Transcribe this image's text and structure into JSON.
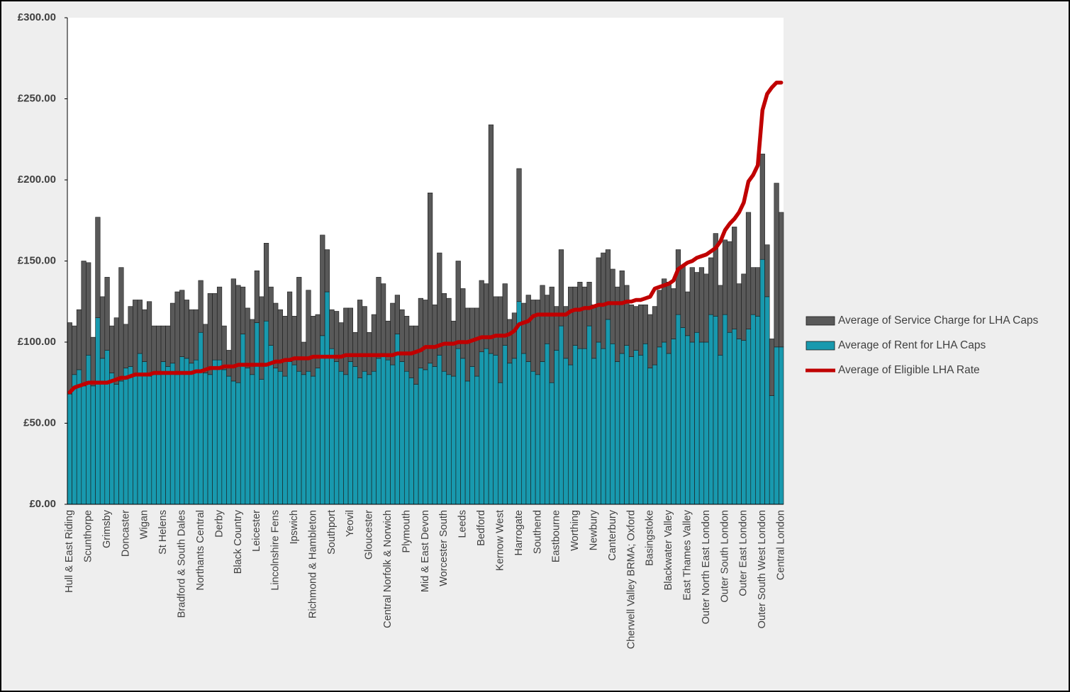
{
  "chart_data": {
    "type": "bar",
    "stacked": true,
    "categories": [
      "Hull & East Riding",
      null,
      null,
      null,
      "Scunthorpe",
      null,
      null,
      null,
      "Grimsby",
      null,
      null,
      null,
      "Doncaster",
      null,
      null,
      null,
      "Wigan",
      null,
      null,
      null,
      "St Helens",
      null,
      null,
      null,
      "Bradford & South Dales",
      null,
      null,
      null,
      "Northants Central",
      null,
      null,
      null,
      "Derby",
      null,
      null,
      null,
      "Black Country",
      null,
      null,
      null,
      "Leicester",
      null,
      null,
      null,
      "Lincolnshire Fens",
      null,
      null,
      null,
      "Ipswich",
      null,
      null,
      null,
      "Richmond & Hambleton",
      null,
      null,
      null,
      "Southport",
      null,
      null,
      null,
      "Yeovil",
      null,
      null,
      null,
      "Gloucester",
      null,
      null,
      null,
      "Central Norfolk & Norwich",
      null,
      null,
      null,
      "Plymouth",
      null,
      null,
      null,
      "Mid & East Devon",
      null,
      null,
      null,
      "Worcester South",
      null,
      null,
      null,
      "Leeds",
      null,
      null,
      null,
      "Bedford",
      null,
      null,
      null,
      "Kernow West",
      null,
      null,
      null,
      "Harrogate",
      null,
      null,
      null,
      "Southend",
      null,
      null,
      null,
      "Eastbourne",
      null,
      null,
      null,
      "Worthing",
      null,
      null,
      null,
      "Newbury",
      null,
      null,
      null,
      "Canterbury",
      null,
      null,
      null,
      "Cherwell Valley BRMA; Oxford",
      null,
      null,
      null,
      "Basingstoke",
      null,
      null,
      null,
      "Blackwater Valley",
      null,
      null,
      null,
      "East Thames Valley",
      null,
      null,
      null,
      "Outer North East London",
      null,
      null,
      null,
      "Outer South London",
      null,
      null,
      null,
      "Outer East London",
      null,
      null,
      null,
      "Outer South West London",
      null,
      null,
      null,
      "Central London"
    ],
    "series": [
      {
        "name": "Average of Service Charge for LHA Caps",
        "color": "#595959",
        "stack": "bottom-1",
        "values": [
          44,
          30,
          37,
          77,
          57,
          30,
          62,
          38,
          45,
          29,
          41,
          70,
          27,
          37,
          46,
          33,
          32,
          46,
          30,
          30,
          22,
          25,
          37,
          51,
          41,
          36,
          33,
          31,
          32,
          30,
          50,
          41,
          45,
          27,
          16,
          63,
          60,
          29,
          37,
          34,
          32,
          51,
          48,
          36,
          40,
          38,
          37,
          43,
          30,
          58,
          20,
          50,
          37,
          33,
          62,
          26,
          24,
          31,
          30,
          41,
          33,
          21,
          48,
          40,
          26,
          35,
          50,
          43,
          24,
          38,
          24,
          32,
          34,
          32,
          36,
          43,
          43,
          105,
          38,
          63,
          48,
          47,
          34,
          54,
          43,
          45,
          36,
          42,
          44,
          40,
          141,
          36,
          53,
          38,
          27,
          28,
          82,
          31,
          41,
          44,
          46,
          47,
          30,
          59,
          27,
          47,
          32,
          48,
          36,
          41,
          38,
          27,
          33,
          52,
          59,
          43,
          46,
          46,
          51,
          37,
          32,
          27,
          31,
          24,
          33,
          36,
          35,
          39,
          44,
          31,
          40,
          38,
          27,
          46,
          37,
          46,
          42,
          35,
          51,
          43,
          46,
          56,
          63,
          34,
          41,
          72,
          29,
          30,
          65,
          32,
          35,
          101,
          83
        ]
      },
      {
        "name": "Average of Rent for LHA Caps",
        "color": "#1899ae",
        "stack": "bottom-0",
        "values": [
          68,
          80,
          83,
          73,
          92,
          73,
          115,
          90,
          95,
          81,
          74,
          76,
          84,
          85,
          80,
          93,
          88,
          79,
          80,
          80,
          88,
          85,
          87,
          80,
          91,
          90,
          87,
          89,
          106,
          81,
          80,
          89,
          89,
          83,
          79,
          76,
          75,
          105,
          84,
          80,
          112,
          77,
          113,
          98,
          84,
          82,
          79,
          88,
          86,
          82,
          80,
          82,
          79,
          84,
          104,
          131,
          96,
          88,
          82,
          80,
          88,
          85,
          78,
          82,
          80,
          82,
          90,
          93,
          89,
          86,
          105,
          88,
          82,
          78,
          74,
          84,
          83,
          87,
          85,
          92,
          82,
          80,
          79,
          96,
          90,
          76,
          85,
          79,
          94,
          96,
          93,
          92,
          75,
          98,
          87,
          90,
          125,
          93,
          88,
          82,
          80,
          88,
          99,
          75,
          95,
          110,
          90,
          86,
          98,
          96,
          96,
          110,
          90,
          100,
          96,
          114,
          99,
          88,
          93,
          98,
          91,
          95,
          92,
          99,
          84,
          86,
          97,
          100,
          93,
          102,
          117,
          109,
          104,
          100,
          106,
          100,
          100,
          117,
          116,
          92,
          117,
          106,
          108,
          102,
          101,
          108,
          117,
          116,
          151,
          128,
          67,
          97,
          97
        ]
      },
      {
        "name": "Average of Eligible LHA Rate",
        "color": "#c00000",
        "type": "line",
        "values": [
          69,
          72,
          73,
          74,
          75,
          75,
          75,
          75,
          75,
          76,
          77,
          78,
          78,
          79,
          80,
          80,
          80,
          80,
          81,
          81,
          81,
          81,
          81,
          81,
          81,
          81,
          81,
          82,
          82,
          83,
          84,
          84,
          84,
          85,
          85,
          85,
          86,
          86,
          86,
          86,
          86,
          86,
          86,
          87,
          88,
          88,
          89,
          89,
          90,
          90,
          90,
          90,
          91,
          91,
          91,
          91,
          91,
          91,
          91,
          92,
          92,
          92,
          92,
          92,
          92,
          92,
          92,
          92,
          92,
          92,
          93,
          93,
          93,
          93,
          94,
          95,
          97,
          97,
          97,
          98,
          99,
          99,
          99,
          100,
          100,
          100,
          101,
          102,
          103,
          103,
          103,
          104,
          104,
          104,
          105,
          107,
          111,
          112,
          113,
          116,
          117,
          117,
          117,
          117,
          117,
          117,
          117,
          119,
          120,
          120,
          121,
          121,
          122,
          123,
          123,
          124,
          124,
          124,
          124,
          125,
          125,
          126,
          126,
          127,
          128,
          133,
          134,
          135,
          136,
          138,
          145,
          147,
          149,
          150,
          152,
          153,
          154,
          156,
          158,
          162,
          169,
          173,
          176,
          180,
          186,
          199,
          203,
          209,
          243,
          253,
          257,
          260,
          260
        ]
      }
    ],
    "ylim": [
      0,
      300
    ],
    "yticks": [
      {
        "value": 0,
        "label": "£0.00"
      },
      {
        "value": 50,
        "label": "£50.00"
      },
      {
        "value": 100,
        "label": "£100.00"
      },
      {
        "value": 150,
        "label": "£150.00"
      },
      {
        "value": 200,
        "label": "£200.00"
      },
      {
        "value": 250,
        "label": "£250.00"
      },
      {
        "value": 300,
        "label": "£300.00"
      }
    ],
    "grid": false,
    "legend": "right"
  }
}
